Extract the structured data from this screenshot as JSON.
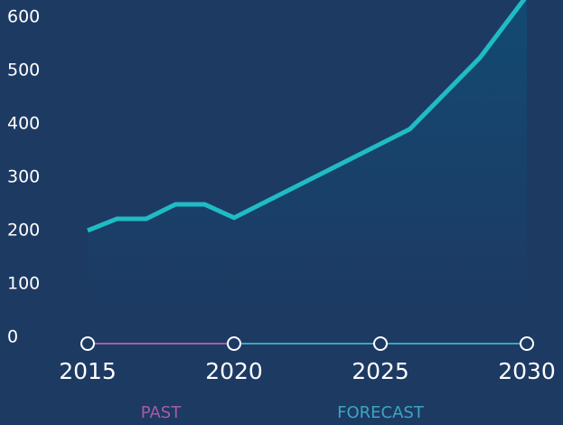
{
  "chart_data": {
    "type": "area_line",
    "x": [
      2015,
      2016,
      2017,
      2018,
      2019,
      2020,
      2026,
      2028.4,
      2030
    ],
    "values": [
      200,
      222,
      222,
      249,
      249,
      224,
      390,
      524,
      640
    ],
    "color": "#1fbcc4",
    "ylim": [
      0,
      632
    ],
    "yticks": [
      0,
      100,
      200,
      300,
      400,
      500,
      600
    ],
    "xlim": [
      2015,
      2030
    ],
    "xticks": [
      2015,
      2020,
      2025,
      2030
    ],
    "segments": [
      {
        "name": "PAST",
        "color": "#a85ba8",
        "range": [
          2015,
          2020
        ]
      },
      {
        "name": "FORECAST",
        "color": "#3aa7bf",
        "range": [
          2020,
          2030
        ]
      }
    ]
  }
}
